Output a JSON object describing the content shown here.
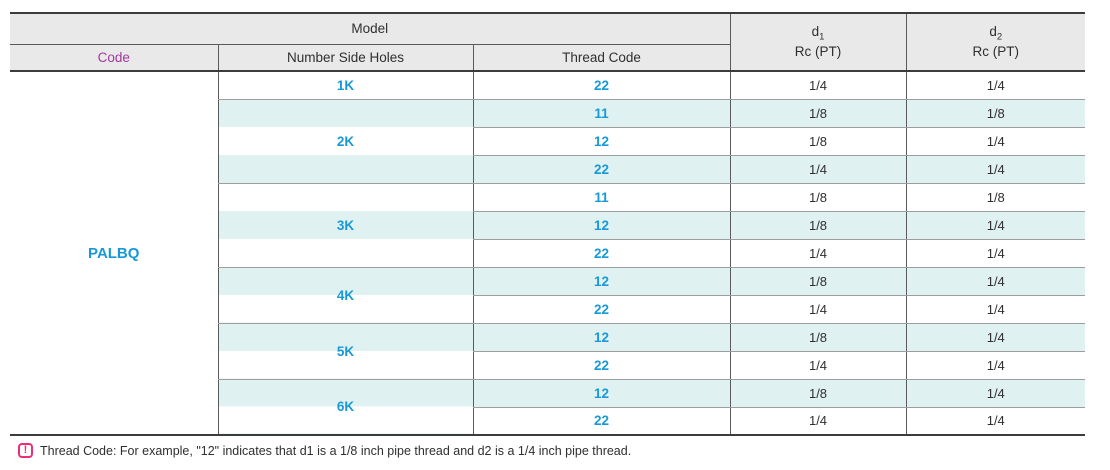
{
  "colors": {
    "accent_blue": "#1899d6",
    "magenta": "#a2399e",
    "note_pink": "#ee2c7b",
    "row_tint": "#e0f1f2",
    "header_bg": "#e9e9e9"
  },
  "table": {
    "header": {
      "model": "Model",
      "code": "Code",
      "number_side_holes": "Number Side Holes",
      "thread_code": "Thread Code",
      "d1": {
        "base": "d",
        "sub": "1",
        "unit": "Rc (PT)"
      },
      "d2": {
        "base": "d",
        "sub": "2",
        "unit": "Rc (PT)"
      }
    },
    "code_value": "PALBQ",
    "groups": [
      {
        "side_holes": "1K",
        "rows": [
          {
            "thread_code": "22",
            "d1": "1/4",
            "d2": "1/4"
          }
        ]
      },
      {
        "side_holes": "2K",
        "rows": [
          {
            "thread_code": "11",
            "d1": "1/8",
            "d2": "1/8"
          },
          {
            "thread_code": "12",
            "d1": "1/8",
            "d2": "1/4"
          },
          {
            "thread_code": "22",
            "d1": "1/4",
            "d2": "1/4"
          }
        ]
      },
      {
        "side_holes": "3K",
        "rows": [
          {
            "thread_code": "11",
            "d1": "1/8",
            "d2": "1/8"
          },
          {
            "thread_code": "12",
            "d1": "1/8",
            "d2": "1/4"
          },
          {
            "thread_code": "22",
            "d1": "1/4",
            "d2": "1/4"
          }
        ]
      },
      {
        "side_holes": "4K",
        "rows": [
          {
            "thread_code": "12",
            "d1": "1/8",
            "d2": "1/4"
          },
          {
            "thread_code": "22",
            "d1": "1/4",
            "d2": "1/4"
          }
        ]
      },
      {
        "side_holes": "5K",
        "rows": [
          {
            "thread_code": "12",
            "d1": "1/8",
            "d2": "1/4"
          },
          {
            "thread_code": "22",
            "d1": "1/4",
            "d2": "1/4"
          }
        ]
      },
      {
        "side_holes": "6K",
        "rows": [
          {
            "thread_code": "12",
            "d1": "1/8",
            "d2": "1/4"
          },
          {
            "thread_code": "22",
            "d1": "1/4",
            "d2": "1/4"
          }
        ]
      }
    ]
  },
  "footnote": {
    "icon": "!",
    "text": "Thread Code: For example, \"12\" indicates that d1 is a 1/8 inch pipe thread and d2 is a 1/4 inch pipe thread."
  }
}
